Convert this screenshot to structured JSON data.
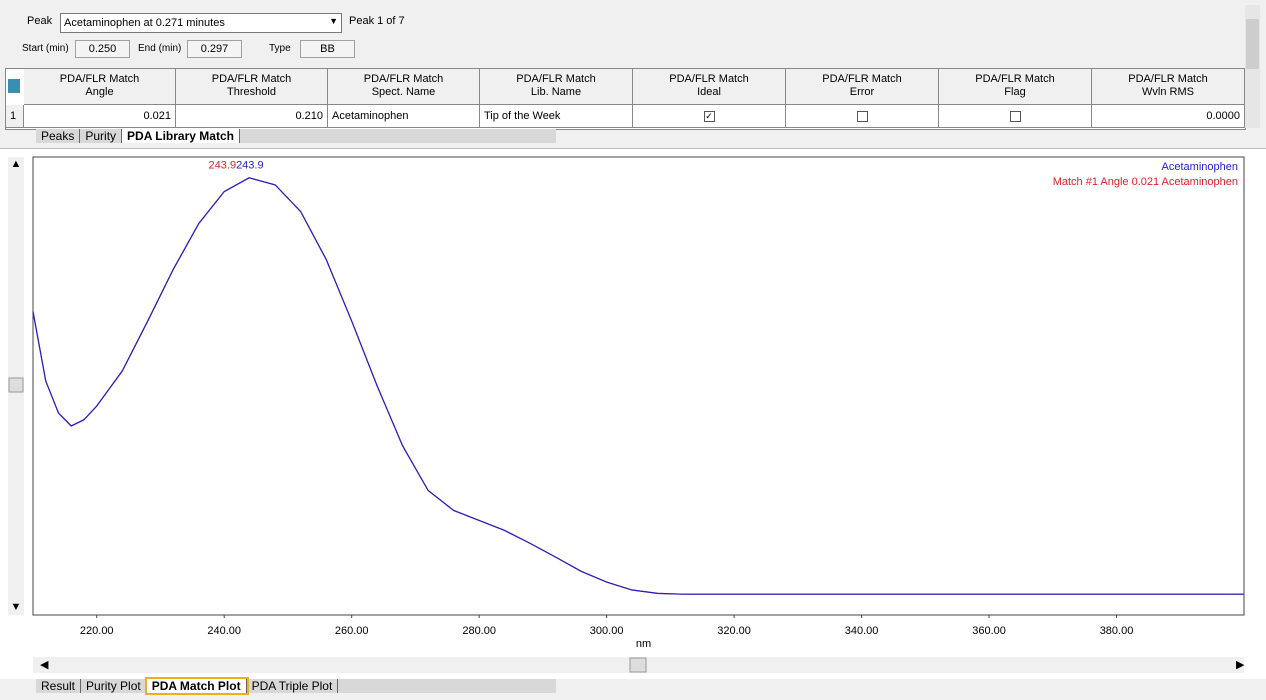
{
  "peak_panel": {
    "peak_label": "Peak",
    "peak_selection": "Acetaminophen at 0.271 minutes",
    "peak_count": "Peak 1 of 7",
    "start_label": "Start (min)",
    "start_value": "0.250",
    "end_label": "End (min)",
    "end_value": "0.297",
    "type_label": "Type",
    "type_value": "BB"
  },
  "table": {
    "headers": [
      [
        "PDA/FLR Match",
        "Angle"
      ],
      [
        "PDA/FLR Match",
        "Threshold"
      ],
      [
        "PDA/FLR Match",
        "Spect. Name"
      ],
      [
        "PDA/FLR Match",
        "Lib. Name"
      ],
      [
        "PDA/FLR Match",
        "Ideal"
      ],
      [
        "PDA/FLR Match",
        "Error"
      ],
      [
        "PDA/FLR Match",
        "Flag"
      ],
      [
        "PDA/FLR Match",
        "Wvln RMS"
      ]
    ],
    "rows": [
      [
        "1",
        "0.021",
        "0.210",
        "Acetaminophen",
        "Tip of the Week",
        true,
        false,
        false,
        "0.0000"
      ]
    ]
  },
  "top_tabs": [
    "Peaks",
    "Purity",
    "PDA Library Match"
  ],
  "top_active_tab": 2,
  "bottom_tabs": [
    "Result",
    "Purity Plot",
    "PDA Match Plot",
    "PDA Triple Plot"
  ],
  "bottom_active_tab": 2,
  "chart_data": {
    "type": "line",
    "x_label": "nm",
    "x": [
      210,
      212,
      214,
      216,
      218,
      220,
      224,
      228,
      232,
      236,
      240,
      243.9,
      248,
      252,
      256,
      260,
      264,
      268,
      272,
      276,
      280,
      284,
      288,
      292,
      296,
      300,
      304,
      308,
      312,
      400
    ],
    "series": [
      {
        "name": "Acetaminophen",
        "color": "#2222cc",
        "values": [
          0.679,
          0.512,
          0.435,
          0.404,
          0.419,
          0.452,
          0.536,
          0.656,
          0.78,
          0.89,
          0.967,
          1.0,
          0.983,
          0.919,
          0.804,
          0.656,
          0.5,
          0.356,
          0.249,
          0.201,
          0.177,
          0.153,
          0.122,
          0.089,
          0.055,
          0.029,
          0.01,
          0.002,
          0,
          0
        ]
      },
      {
        "name": "Match #1 Angle 0.021 Acetaminophen",
        "color": "#e0202a",
        "values": [
          0.679,
          0.512,
          0.435,
          0.404,
          0.419,
          0.452,
          0.536,
          0.656,
          0.78,
          0.89,
          0.967,
          1.0,
          0.983,
          0.919,
          0.804,
          0.656,
          0.5,
          0.356,
          0.249,
          0.201,
          0.177,
          0.153,
          0.122,
          0.089,
          0.055,
          0.029,
          0.01,
          0.002,
          0,
          0
        ]
      }
    ],
    "peak_labels": [
      "243.9",
      "243.9"
    ],
    "xlim": [
      210,
      400
    ],
    "ylim": [
      -0.05,
      1.05
    ],
    "xticks": [
      {
        "value": 220,
        "label": "220.00"
      },
      {
        "value": 240,
        "label": "240.00"
      },
      {
        "value": 260,
        "label": "260.00"
      },
      {
        "value": 280,
        "label": "280.00"
      },
      {
        "value": 300,
        "label": "300.00"
      },
      {
        "value": 320,
        "label": "320.00"
      },
      {
        "value": 340,
        "label": "340.00"
      },
      {
        "value": 360,
        "label": "360.00"
      },
      {
        "value": 380,
        "label": "380.00"
      }
    ]
  }
}
